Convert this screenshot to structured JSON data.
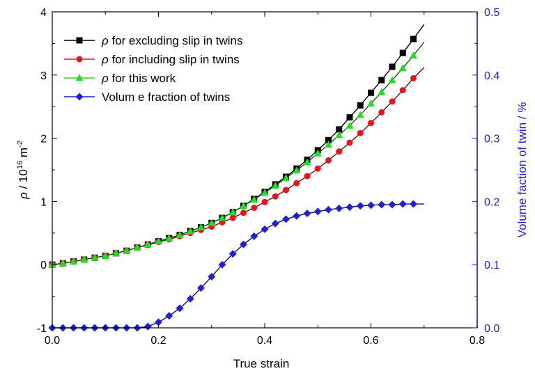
{
  "chart_data": {
    "type": "line",
    "xlabel": "True strain",
    "ylabel_left": {
      "symbol": "ρ",
      "text": " / 10",
      "exponent_1": "16",
      "unit": " m",
      "exponent_2": "-2"
    },
    "ylabel_right": "Volume faction of twin / %",
    "xlim": [
      0.0,
      0.8
    ],
    "ylim_left": [
      -1,
      4
    ],
    "ylim_right": [
      0.0,
      0.5
    ],
    "xticks": [
      "0.0",
      "0.2",
      "0.4",
      "0.6",
      "0.8"
    ],
    "yticks_left": [
      "-1",
      "0",
      "1",
      "2",
      "3",
      "4"
    ],
    "yticks_right": [
      "0.0",
      "0.1",
      "0.2",
      "0.3",
      "0.4",
      "0.5"
    ],
    "legend_position": "top-left",
    "series": [
      {
        "legend_symbol": "ρ",
        "legend_text": " for excluding slip in twins",
        "axis": "left",
        "color": "#000000",
        "marker": "square",
        "x": [
          0.0,
          0.02,
          0.04,
          0.06,
          0.08,
          0.1,
          0.12,
          0.14,
          0.16,
          0.18,
          0.2,
          0.22,
          0.24,
          0.26,
          0.28,
          0.3,
          0.32,
          0.34,
          0.36,
          0.38,
          0.4,
          0.42,
          0.44,
          0.46,
          0.48,
          0.5,
          0.52,
          0.54,
          0.56,
          0.58,
          0.6,
          0.62,
          0.64,
          0.66,
          0.68,
          0.7
        ],
        "y": [
          0.0,
          0.02,
          0.05,
          0.08,
          0.11,
          0.14,
          0.18,
          0.22,
          0.27,
          0.32,
          0.37,
          0.42,
          0.47,
          0.53,
          0.59,
          0.66,
          0.74,
          0.83,
          0.93,
          1.04,
          1.15,
          1.27,
          1.39,
          1.52,
          1.66,
          1.81,
          1.97,
          2.14,
          2.33,
          2.52,
          2.72,
          2.92,
          3.13,
          3.35,
          3.57,
          3.8
        ]
      },
      {
        "legend_symbol": "ρ",
        "legend_text": " for including slip in twins",
        "axis": "left",
        "color": "#e8141c",
        "marker": "circle",
        "x": [
          0.0,
          0.02,
          0.04,
          0.06,
          0.08,
          0.1,
          0.12,
          0.14,
          0.16,
          0.18,
          0.2,
          0.22,
          0.24,
          0.26,
          0.28,
          0.3,
          0.32,
          0.34,
          0.36,
          0.38,
          0.4,
          0.42,
          0.44,
          0.46,
          0.48,
          0.5,
          0.52,
          0.54,
          0.56,
          0.58,
          0.6,
          0.62,
          0.64,
          0.66,
          0.68,
          0.7
        ],
        "y": [
          0.0,
          0.02,
          0.05,
          0.08,
          0.11,
          0.14,
          0.18,
          0.22,
          0.27,
          0.31,
          0.36,
          0.4,
          0.45,
          0.5,
          0.55,
          0.6,
          0.67,
          0.74,
          0.82,
          0.9,
          0.99,
          1.08,
          1.18,
          1.29,
          1.4,
          1.52,
          1.65,
          1.79,
          1.93,
          2.08,
          2.24,
          2.41,
          2.58,
          2.76,
          2.95,
          3.12
        ]
      },
      {
        "legend_symbol": "ρ",
        "legend_text": " for this work",
        "axis": "left",
        "color": "#22dd22",
        "marker": "triangle",
        "x": [
          0.0,
          0.02,
          0.04,
          0.06,
          0.08,
          0.1,
          0.12,
          0.14,
          0.16,
          0.18,
          0.2,
          0.22,
          0.24,
          0.26,
          0.28,
          0.3,
          0.32,
          0.34,
          0.36,
          0.38,
          0.4,
          0.42,
          0.44,
          0.46,
          0.48,
          0.5,
          0.52,
          0.54,
          0.56,
          0.58,
          0.6,
          0.62,
          0.64,
          0.66,
          0.68,
          0.7
        ],
        "y": [
          0.0,
          0.02,
          0.05,
          0.08,
          0.11,
          0.14,
          0.18,
          0.22,
          0.27,
          0.32,
          0.37,
          0.42,
          0.47,
          0.53,
          0.59,
          0.66,
          0.74,
          0.83,
          0.93,
          1.03,
          1.14,
          1.25,
          1.37,
          1.49,
          1.62,
          1.76,
          1.9,
          2.05,
          2.2,
          2.37,
          2.55,
          2.73,
          2.92,
          3.11,
          3.31,
          3.52
        ]
      },
      {
        "legend_symbol": "",
        "legend_text": "Volum e fraction of twins",
        "axis": "right",
        "color": "#1f1fd8",
        "marker": "diamond",
        "x": [
          0.0,
          0.02,
          0.04,
          0.06,
          0.08,
          0.1,
          0.12,
          0.14,
          0.16,
          0.18,
          0.2,
          0.22,
          0.24,
          0.26,
          0.28,
          0.3,
          0.32,
          0.34,
          0.36,
          0.38,
          0.4,
          0.42,
          0.44,
          0.46,
          0.48,
          0.5,
          0.52,
          0.54,
          0.56,
          0.58,
          0.6,
          0.62,
          0.64,
          0.66,
          0.68,
          0.7
        ],
        "y": [
          0.0,
          0.0,
          0.0,
          0.0,
          0.0,
          0.0,
          0.0,
          0.0,
          0.0,
          0.002,
          0.009,
          0.019,
          0.031,
          0.046,
          0.063,
          0.081,
          0.1,
          0.117,
          0.132,
          0.145,
          0.156,
          0.165,
          0.172,
          0.177,
          0.181,
          0.184,
          0.187,
          0.189,
          0.191,
          0.193,
          0.194,
          0.195,
          0.195,
          0.196,
          0.196,
          0.196
        ]
      }
    ]
  }
}
